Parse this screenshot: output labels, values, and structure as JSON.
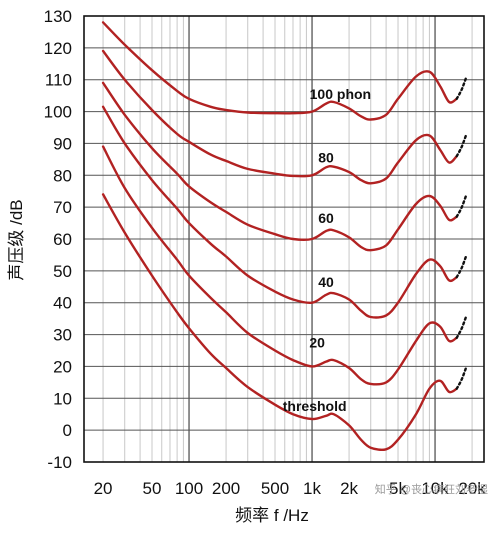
{
  "chart_data": {
    "type": "line",
    "title": "",
    "xlabel": "频率 f /Hz",
    "ylabel": "声压级 /dB",
    "xscale": "log",
    "xlim": [
      14,
      25000
    ],
    "ylim": [
      -10,
      130
    ],
    "y_ticks": [
      "130",
      "120",
      "110",
      "100",
      "90",
      "80",
      "70",
      "60",
      "50",
      "40",
      "30",
      "20",
      "10",
      "0",
      "-10"
    ],
    "x_ticks": [
      {
        "value": 20,
        "label": "20"
      },
      {
        "value": 50,
        "label": "50"
      },
      {
        "value": 100,
        "label": "100"
      },
      {
        "value": 200,
        "label": "200"
      },
      {
        "value": 500,
        "label": "500"
      },
      {
        "value": 1000,
        "label": "1k"
      },
      {
        "value": 2000,
        "label": "2k"
      },
      {
        "value": 5000,
        "label": "5k"
      },
      {
        "value": 10000,
        "label": "10k"
      },
      {
        "value": 20000,
        "label": "20k"
      }
    ],
    "grid": true,
    "colors": {
      "curve": "#b22222",
      "dotted": "#111111",
      "grid_major": "#555555",
      "grid_minor": "#c8c8c8"
    },
    "x": [
      20,
      30,
      50,
      80,
      100,
      150,
      200,
      300,
      500,
      700,
      1000,
      1300,
      1500,
      2000,
      2500,
      3000,
      4000,
      5000,
      7000,
      9000,
      11000,
      13000,
      15000
    ],
    "series": [
      {
        "name": "100 phon",
        "label_pos": [
          1700,
          104
        ],
        "values": [
          128,
          121,
          113,
          106.5,
          104,
          101.5,
          100.5,
          99.7,
          99.5,
          99.5,
          100,
          102.5,
          103,
          101,
          98.5,
          97.5,
          99,
          104,
          111,
          112.5,
          108,
          103,
          104
        ]
      },
      {
        "name": "80",
        "label_pos": [
          1300,
          84
        ],
        "values": [
          119,
          110,
          100.5,
          93,
          90.5,
          86.5,
          84.5,
          82,
          80.5,
          79.8,
          80,
          82.5,
          82.7,
          81,
          78.5,
          77.5,
          79,
          84,
          91,
          92.5,
          88,
          84,
          86
        ]
      },
      {
        "name": "60",
        "label_pos": [
          1300,
          65
        ],
        "values": [
          109,
          99,
          88.5,
          80.5,
          76.5,
          71.5,
          68.5,
          64.5,
          61.5,
          60,
          60,
          62.5,
          62.7,
          60.5,
          57.5,
          56.5,
          58,
          63,
          71,
          73.5,
          70.5,
          66,
          67
        ]
      },
      {
        "name": "40",
        "label_pos": [
          1300,
          45
        ],
        "values": [
          101.5,
          90,
          78.5,
          69.5,
          65,
          58.5,
          54.5,
          48.5,
          43.5,
          41,
          40,
          42.5,
          43,
          41,
          37.5,
          35.5,
          36,
          40,
          49,
          53.5,
          51.5,
          47,
          48
        ]
      },
      {
        "name": "20",
        "label_pos": [
          1100,
          26
        ],
        "values": [
          89,
          76,
          63.5,
          53.5,
          48.5,
          41.5,
          37,
          30.5,
          25,
          22,
          20,
          21.5,
          22,
          19.5,
          16,
          14.5,
          15,
          19,
          28,
          33.5,
          32.5,
          28,
          29
        ]
      },
      {
        "name": "threshold",
        "label_pos": [
          1050,
          6
        ],
        "values": [
          74,
          62,
          48.5,
          37,
          32,
          24,
          19.5,
          13.5,
          8,
          5,
          3.5,
          4.5,
          5,
          1.5,
          -3,
          -5.5,
          -6,
          -3,
          5,
          13,
          15.5,
          12,
          13
        ]
      }
    ],
    "dotted_tails": [
      {
        "x": [
          15000,
          16500,
          18000
        ],
        "values": [
          104,
          107,
          111
        ]
      },
      {
        "x": [
          15000,
          16500,
          18000
        ],
        "values": [
          86,
          89,
          93
        ]
      },
      {
        "x": [
          15000,
          16500,
          18000
        ],
        "values": [
          67,
          70,
          74
        ]
      },
      {
        "x": [
          15000,
          16500,
          18000
        ],
        "values": [
          48,
          51,
          55
        ]
      },
      {
        "x": [
          15000,
          16500,
          18000
        ],
        "values": [
          29,
          32,
          36
        ]
      },
      {
        "x": [
          15000,
          16500,
          18000
        ],
        "values": [
          13,
          16,
          20
        ]
      }
    ]
  },
  "watermark": "知乎 @丧心病狂刘老湿"
}
